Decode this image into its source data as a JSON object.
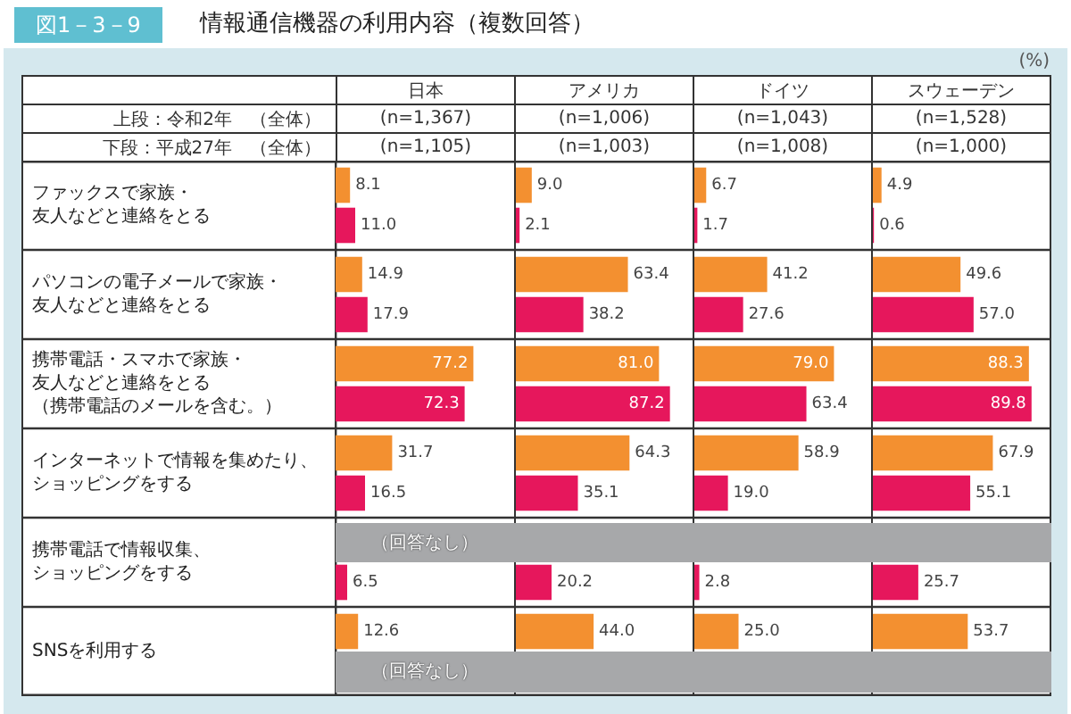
{
  "chart_data": [
    {
      "type": "bar",
      "orientation": "horizontal",
      "title": "情報通信機器の利用内容（複数回答）",
      "subtitle": "日本",
      "annotations": [
        "図1－3－9",
        "上段：令和2年　（全体）",
        "下段：平成27年　（全体）",
        "(n=1,367)",
        "(n=1,105)"
      ],
      "categories": [
        "ファックスで家族・友人などと連絡をとる",
        "パソコンの電子メールで家族・友人などと連絡をとる",
        "携帯電話・スマホで家族・友人などと連絡をとる（携帯電話のメールを含む。）",
        "インターネットで情報を集めたり、ショッピングをする",
        "携帯電話で情報収集、ショッピングをする",
        "SNSを利用する"
      ],
      "series": [
        {
          "color": "#f39030",
          "values": [
            8.1,
            14.9,
            77.2,
            31.7,
            null,
            12.6
          ],
          "value_labels": [
            "8.1",
            "14.9",
            "77.2",
            "31.7",
            null,
            "12.6"
          ]
        },
        {
          "color": "#e6175c",
          "values": [
            11.0,
            17.9,
            72.3,
            16.5,
            6.5,
            null
          ],
          "value_labels": [
            "11.0",
            "17.9",
            "72.3",
            "16.5",
            "6.5",
            null
          ]
        }
      ],
      "bands": [
        {
          "axis": "y",
          "from": "携帯電話で情報収集、ショッピングをする",
          "to": "携帯電話で情報収集、ショッピングをする",
          "label": "（回答なし）",
          "color": "#a7a8aa"
        },
        {
          "axis": "y",
          "from": "SNSを利用する",
          "to": "SNSを利用する",
          "label": "（回答なし）",
          "color": "#a7a8aa"
        }
      ],
      "xlim": [
        0,
        100
      ],
      "grid": "y",
      "tick_labels": "y"
    },
    {
      "type": "bar",
      "orientation": "horizontal",
      "subtitle": "アメリカ",
      "annotations": [
        "(n=1,006)",
        "(n=1,003)"
      ],
      "categories": [
        null,
        null,
        null,
        null,
        null,
        null
      ],
      "series": [
        {
          "color": "#f39030",
          "values": [
            9.0,
            63.4,
            81.0,
            64.3,
            null,
            44.0
          ],
          "value_labels": [
            "9.0",
            "63.4",
            "81.0",
            "64.3",
            null,
            "44.0"
          ]
        },
        {
          "color": "#e6175c",
          "values": [
            2.1,
            38.2,
            87.2,
            35.1,
            20.2,
            null
          ],
          "value_labels": [
            "2.1",
            "38.2",
            "87.2",
            "35.1",
            "20.2",
            null
          ]
        }
      ],
      "xlim": [
        0,
        100
      ],
      "grid": "y",
      "tick_labels": false
    },
    {
      "type": "bar",
      "orientation": "horizontal",
      "subtitle": "ドイツ",
      "annotations": [
        "(n=1,043)",
        "(n=1,008)"
      ],
      "categories": [
        null,
        null,
        null,
        null,
        null,
        null
      ],
      "series": [
        {
          "color": "#f39030",
          "values": [
            6.7,
            41.2,
            79.0,
            58.9,
            null,
            25.0
          ],
          "value_labels": [
            "6.7",
            "41.2",
            "79.0",
            "58.9",
            null,
            "25.0"
          ]
        },
        {
          "color": "#e6175c",
          "values": [
            1.7,
            27.6,
            63.4,
            19.0,
            2.8,
            null
          ],
          "value_labels": [
            "1.7",
            "27.6",
            "63.4",
            "19.0",
            "2.8",
            null
          ]
        }
      ],
      "xlim": [
        0,
        100
      ],
      "grid": "y",
      "tick_labels": false
    },
    {
      "type": "bar",
      "orientation": "horizontal",
      "subtitle": "スウェーデン",
      "annotations": [
        "(n=1,528)",
        "(n=1,000)",
        "(%)"
      ],
      "categories": [
        null,
        null,
        null,
        null,
        null,
        null
      ],
      "series": [
        {
          "color": "#f39030",
          "values": [
            4.9,
            49.6,
            88.3,
            67.9,
            null,
            53.7
          ],
          "value_labels": [
            "4.9",
            "49.6",
            "88.3",
            "67.9",
            null,
            "53.7"
          ]
        },
        {
          "color": "#e6175c",
          "values": [
            0.6,
            57.0,
            89.8,
            55.1,
            25.7,
            null
          ],
          "value_labels": [
            "0.6",
            "57.0",
            "89.8",
            "55.1",
            "25.7",
            null
          ]
        }
      ],
      "xlim": [
        0,
        100
      ],
      "grid": "y",
      "tick_labels": false
    }
  ]
}
